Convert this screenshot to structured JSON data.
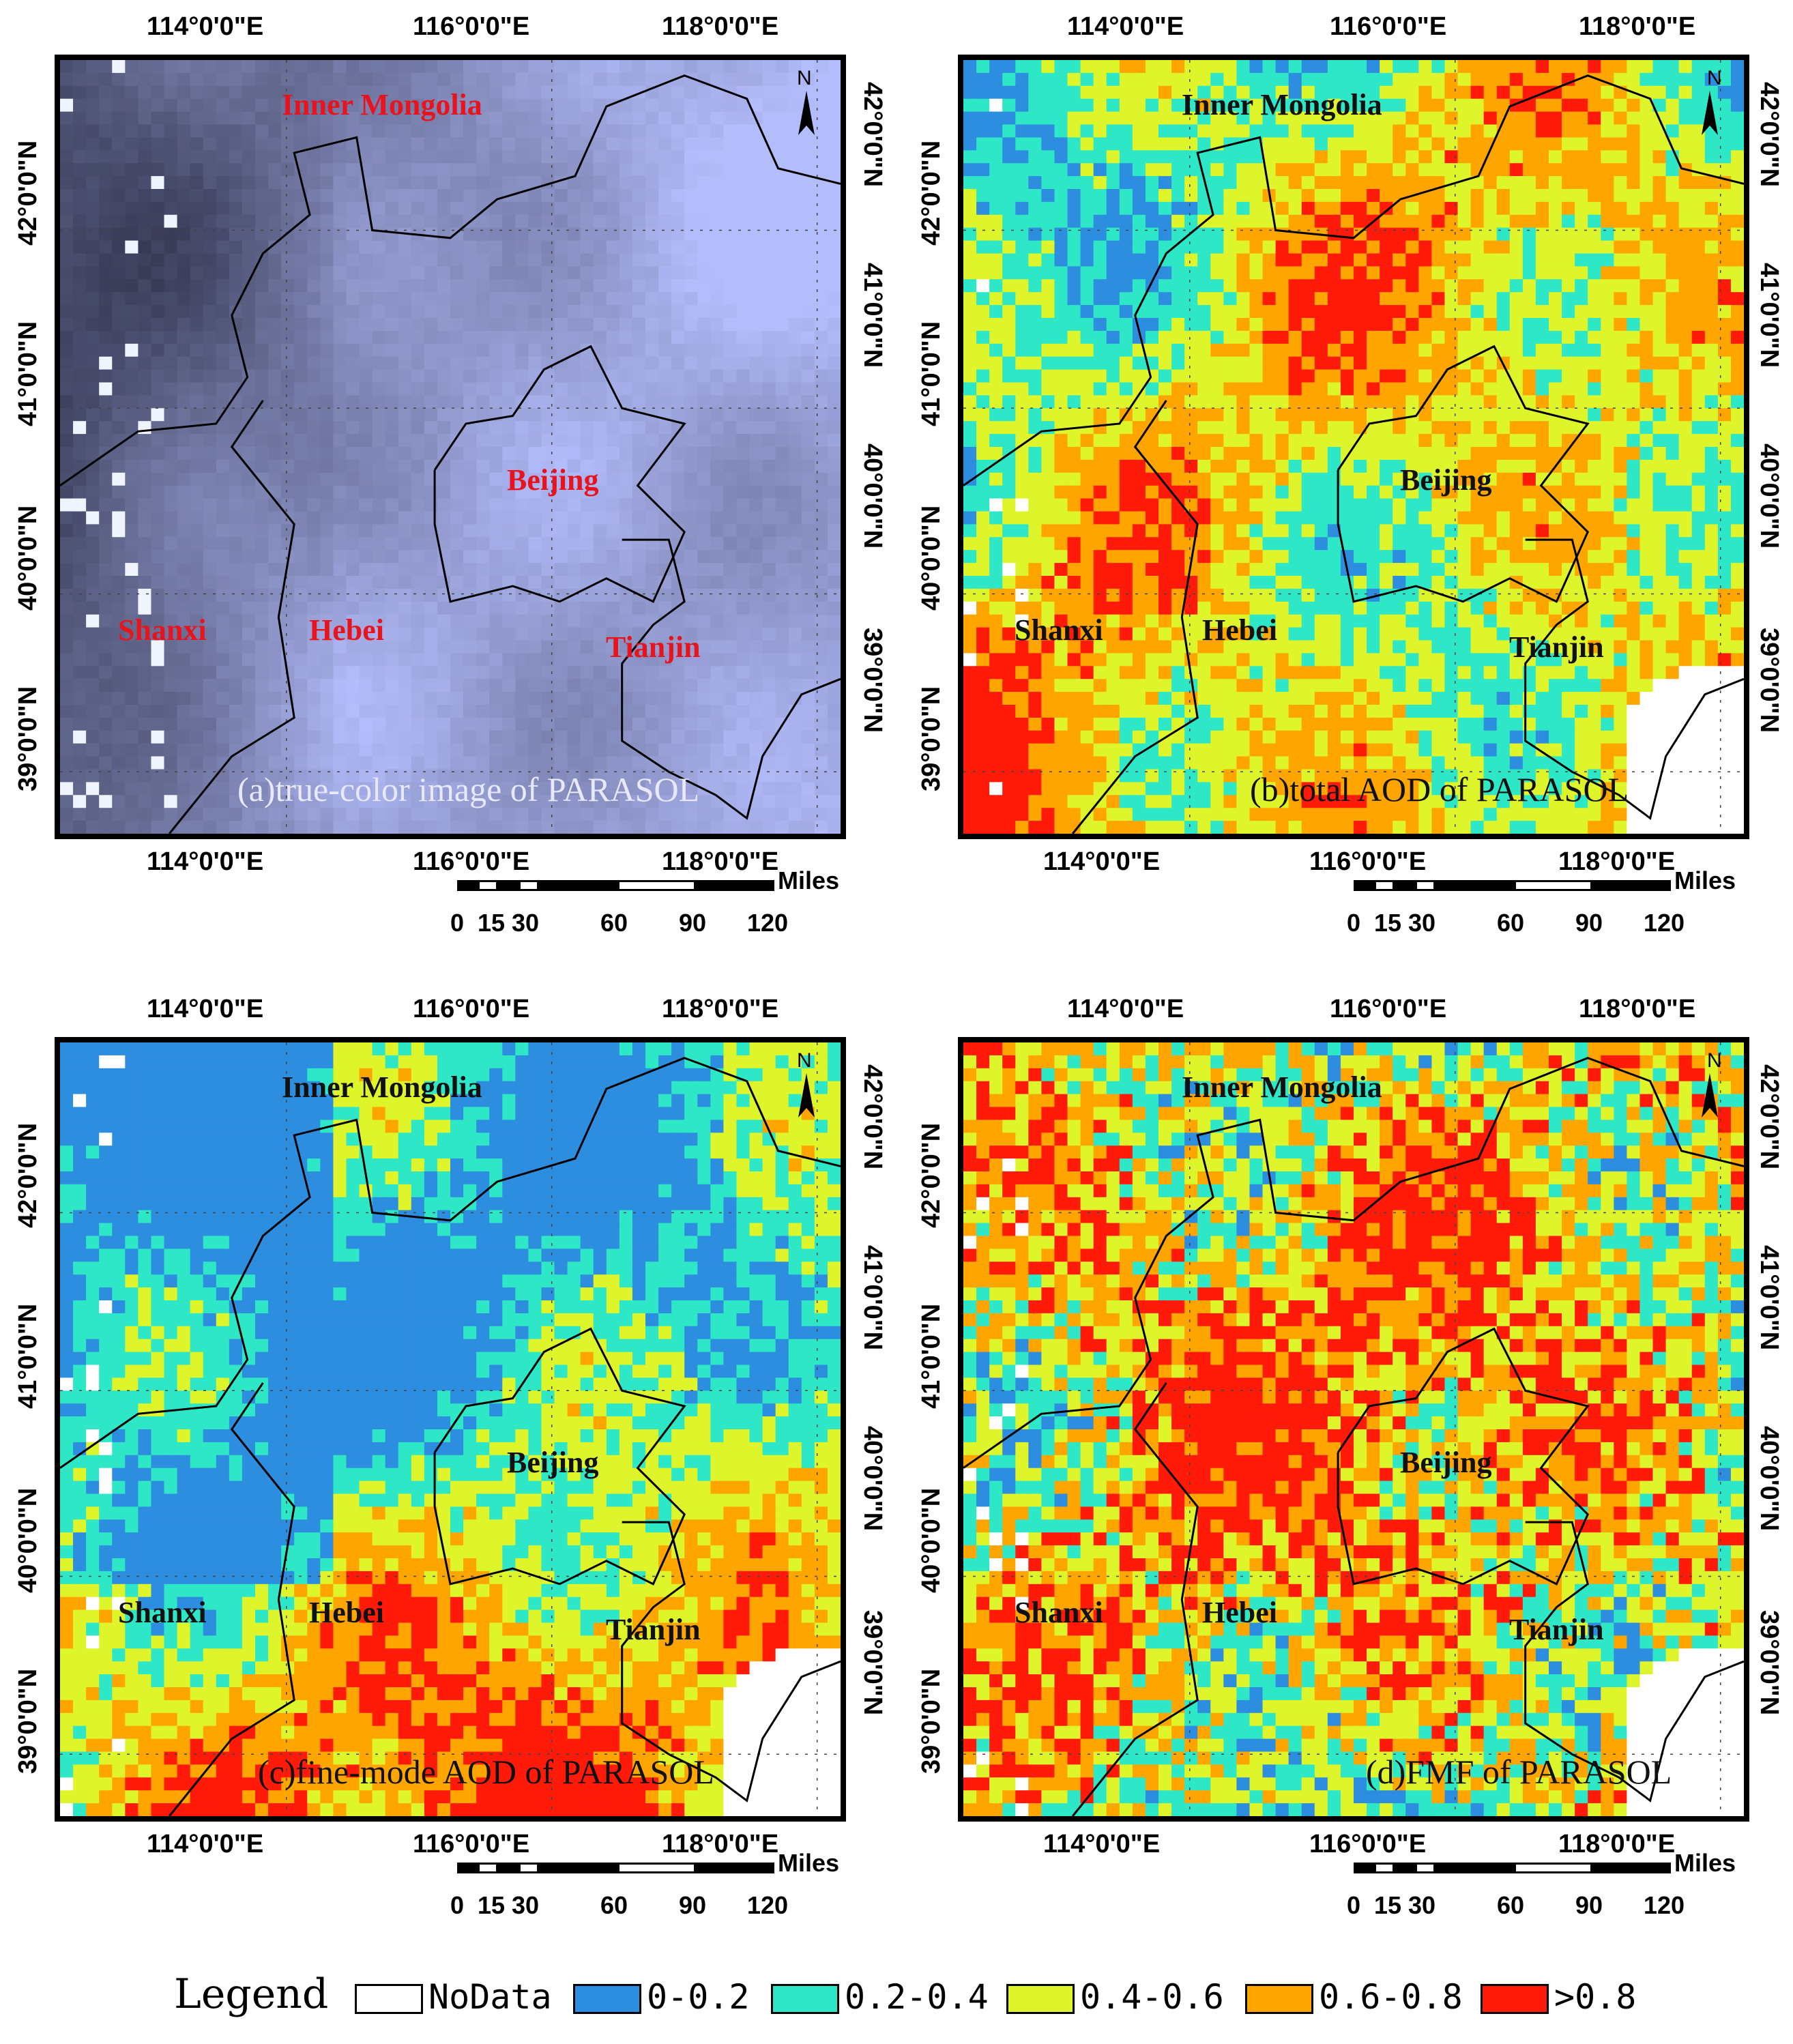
{
  "colors": {
    "nodata": "#ffffff",
    "c1": "#2d8ddf",
    "c2": "#2ee7c6",
    "c3": "#ddf52a",
    "c4": "#ffa500",
    "c5": "#ff1a0a",
    "region_red": "#e8141d",
    "region_dark": "#111111"
  },
  "axes": {
    "lon_labels": [
      "114°0'0\"E",
      "116°0'0\"E",
      "118°0'0\"E"
    ],
    "lat_labels": [
      "42°0'0\"N",
      "41°0'0\"N",
      "40°0'0\"N",
      "39°0'0\"N"
    ]
  },
  "regions": {
    "inner_mongolia": "Inner Mongolia",
    "beijing": "Beijing",
    "shanxi": "Shanxi",
    "hebei": "Hebei",
    "tianjin": "Tianjin"
  },
  "north": "N",
  "scale": {
    "unit": "Miles",
    "ticks": [
      "0",
      "15",
      "30",
      "60",
      "90",
      "120"
    ]
  },
  "panels": [
    {
      "id": "a",
      "caption": "(a)true-color image of PARASOL"
    },
    {
      "id": "b",
      "caption": "(b)total AOD of PARASOL"
    },
    {
      "id": "c",
      "caption": "(c)fine-mode AOD of PARASOL"
    },
    {
      "id": "d",
      "caption": "(d)FMF of PARASOL"
    }
  ],
  "legend": {
    "title": "Legend",
    "items": [
      {
        "label": "NoData",
        "color": "#ffffff"
      },
      {
        "label": "0-0.2",
        "color": "#2d8ddf"
      },
      {
        "label": "0.2-0.4",
        "color": "#2ee7c6"
      },
      {
        "label": "0.4-0.6",
        "color": "#ddf52a"
      },
      {
        "label": "0.6-0.8",
        "color": "#ffa500"
      },
      {
        "label": ">0.8",
        "color": "#ff1a0a"
      }
    ]
  }
}
